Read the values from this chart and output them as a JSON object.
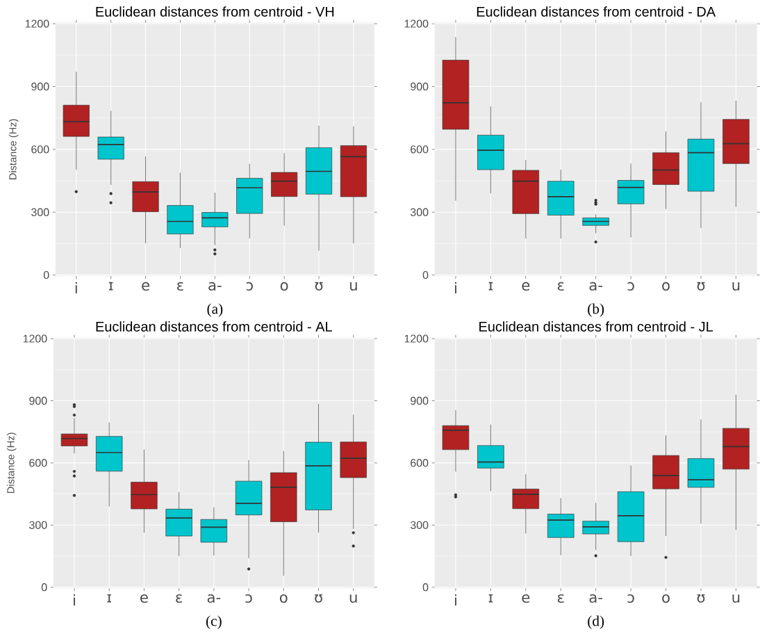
{
  "chart_data": [
    {
      "type": "box",
      "title": "Euclidean distances from centroid - VH",
      "ylabel": "Distance (Hz)",
      "annotations": [
        "(a)"
      ],
      "categories": [
        "i",
        "ɪ",
        "e",
        "ɛ",
        "a-",
        "ɔ",
        "o",
        "ʊ",
        "u"
      ],
      "colors": [
        "#b22222",
        "#00c5cd",
        "#b22222",
        "#00c5cd",
        "#00c5cd",
        "#00c5cd",
        "#b22222",
        "#00c5cd",
        "#b22222"
      ],
      "boxes": [
        {
          "low": 503,
          "q1": 662,
          "median": 733,
          "q3": 811,
          "high": 971,
          "outliers": [
            398
          ]
        },
        {
          "low": 430,
          "q1": 553,
          "median": 623,
          "q3": 659,
          "high": 784,
          "outliers": [
            389,
            345
          ]
        },
        {
          "low": 152,
          "q1": 302,
          "median": 397,
          "q3": 446,
          "high": 567
        },
        {
          "low": 129,
          "q1": 196,
          "median": 256,
          "q3": 332,
          "high": 489
        },
        {
          "low": 143,
          "q1": 230,
          "median": 273,
          "q3": 299,
          "high": 393,
          "outliers": [
            120,
            101
          ]
        },
        {
          "low": 175,
          "q1": 294,
          "median": 417,
          "q3": 462,
          "high": 531
        },
        {
          "low": 236,
          "q1": 375,
          "median": 448,
          "q3": 490,
          "high": 582
        },
        {
          "low": 116,
          "q1": 386,
          "median": 495,
          "q3": 608,
          "high": 713
        },
        {
          "low": 151,
          "q1": 374,
          "median": 565,
          "q3": 618,
          "high": 710
        }
      ],
      "ylim": [
        -5,
        1205
      ],
      "yticks": [
        0,
        300,
        600,
        900,
        1200
      ],
      "grid": true
    },
    {
      "type": "box",
      "title": "Euclidean distances from centroid - DA",
      "annotations": [
        "(b)"
      ],
      "categories": [
        "i",
        "ɪ",
        "e",
        "ɛ",
        "a-",
        "ɔ",
        "o",
        "ʊ",
        "u"
      ],
      "colors": [
        "#b22222",
        "#00c5cd",
        "#b22222",
        "#00c5cd",
        "#00c5cd",
        "#00c5cd",
        "#b22222",
        "#00c5cd",
        "#b22222"
      ],
      "boxes": [
        {
          "low": 355,
          "q1": 696,
          "median": 822,
          "q3": 1026,
          "high": 1136
        },
        {
          "low": 390,
          "q1": 503,
          "median": 596,
          "q3": 668,
          "high": 805
        },
        {
          "low": 174,
          "q1": 293,
          "median": 448,
          "q3": 500,
          "high": 549
        },
        {
          "low": 174,
          "q1": 286,
          "median": 374,
          "q3": 448,
          "high": 503
        },
        {
          "low": 199,
          "q1": 237,
          "median": 256,
          "q3": 273,
          "high": 290,
          "outliers": [
            357,
            346,
            338,
            158
          ]
        },
        {
          "low": 180,
          "q1": 340,
          "median": 418,
          "q3": 452,
          "high": 532
        },
        {
          "low": 315,
          "q1": 432,
          "median": 501,
          "q3": 584,
          "high": 685
        },
        {
          "low": 224,
          "q1": 400,
          "median": 584,
          "q3": 649,
          "high": 825
        },
        {
          "low": 325,
          "q1": 532,
          "median": 627,
          "q3": 743,
          "high": 832
        }
      ],
      "ylim": [
        -5,
        1205
      ],
      "yticks": [
        0,
        300,
        600,
        900,
        1200
      ],
      "grid": true
    },
    {
      "type": "box",
      "title": "Euclidean distances from centroid - AL",
      "ylabel": "Distance (Hz)",
      "annotations": [
        "(c)"
      ],
      "categories": [
        "i",
        "ɪ",
        "e",
        "ɛ",
        "a-",
        "ɔ",
        "o",
        "ʊ",
        "u"
      ],
      "colors": [
        "#b22222",
        "#00c5cd",
        "#b22222",
        "#00c5cd",
        "#00c5cd",
        "#00c5cd",
        "#b22222",
        "#00c5cd",
        "#b22222"
      ],
      "boxes": [
        {
          "low": 646,
          "q1": 682,
          "median": 718,
          "q3": 740,
          "high": 816,
          "outliers": [
            881,
            872,
            831,
            559,
            537,
            443
          ]
        },
        {
          "low": 390,
          "q1": 560,
          "median": 650,
          "q3": 728,
          "high": 795
        },
        {
          "low": 263,
          "q1": 378,
          "median": 447,
          "q3": 507,
          "high": 665
        },
        {
          "low": 150,
          "q1": 247,
          "median": 334,
          "q3": 377,
          "high": 459
        },
        {
          "low": 153,
          "q1": 217,
          "median": 290,
          "q3": 327,
          "high": 386
        },
        {
          "low": 140,
          "q1": 349,
          "median": 405,
          "q3": 512,
          "high": 614,
          "outliers": [
            88
          ]
        },
        {
          "low": 55,
          "q1": 316,
          "median": 483,
          "q3": 553,
          "high": 658
        },
        {
          "low": 264,
          "q1": 373,
          "median": 586,
          "q3": 700,
          "high": 885
        },
        {
          "low": 281,
          "q1": 529,
          "median": 623,
          "q3": 701,
          "high": 833,
          "outliers": [
            263,
            199
          ]
        }
      ],
      "ylim": [
        -5,
        1205
      ],
      "yticks": [
        0,
        300,
        600,
        900,
        1200
      ],
      "grid": true
    },
    {
      "type": "box",
      "title": "Euclidean distances from centroid - JL",
      "annotations": [
        "(d)"
      ],
      "categories": [
        "i",
        "ɪ",
        "e",
        "ɛ",
        "a-",
        "ɔ",
        "o",
        "ʊ",
        "u"
      ],
      "colors": [
        "#b22222",
        "#00c5cd",
        "#b22222",
        "#00c5cd",
        "#00c5cd",
        "#00c5cd",
        "#b22222",
        "#00c5cd",
        "#b22222"
      ],
      "boxes": [
        {
          "low": 558,
          "q1": 664,
          "median": 758,
          "q3": 780,
          "high": 855,
          "outliers": [
            446,
            436
          ]
        },
        {
          "low": 464,
          "q1": 575,
          "median": 604,
          "q3": 684,
          "high": 785
        },
        {
          "low": 259,
          "q1": 379,
          "median": 448,
          "q3": 474,
          "high": 545
        },
        {
          "low": 155,
          "q1": 240,
          "median": 324,
          "q3": 353,
          "high": 430
        },
        {
          "low": 179,
          "q1": 257,
          "median": 291,
          "q3": 319,
          "high": 407,
          "outliers": [
            152
          ]
        },
        {
          "low": 151,
          "q1": 220,
          "median": 345,
          "q3": 461,
          "high": 588
        },
        {
          "low": 247,
          "q1": 475,
          "median": 539,
          "q3": 636,
          "high": 733,
          "outliers": [
            144
          ]
        },
        {
          "low": 307,
          "q1": 482,
          "median": 519,
          "q3": 621,
          "high": 810
        },
        {
          "low": 276,
          "q1": 570,
          "median": 679,
          "q3": 767,
          "high": 930
        }
      ],
      "ylim": [
        -5,
        1205
      ],
      "yticks": [
        0,
        300,
        600,
        900,
        1200
      ],
      "grid": true
    }
  ]
}
